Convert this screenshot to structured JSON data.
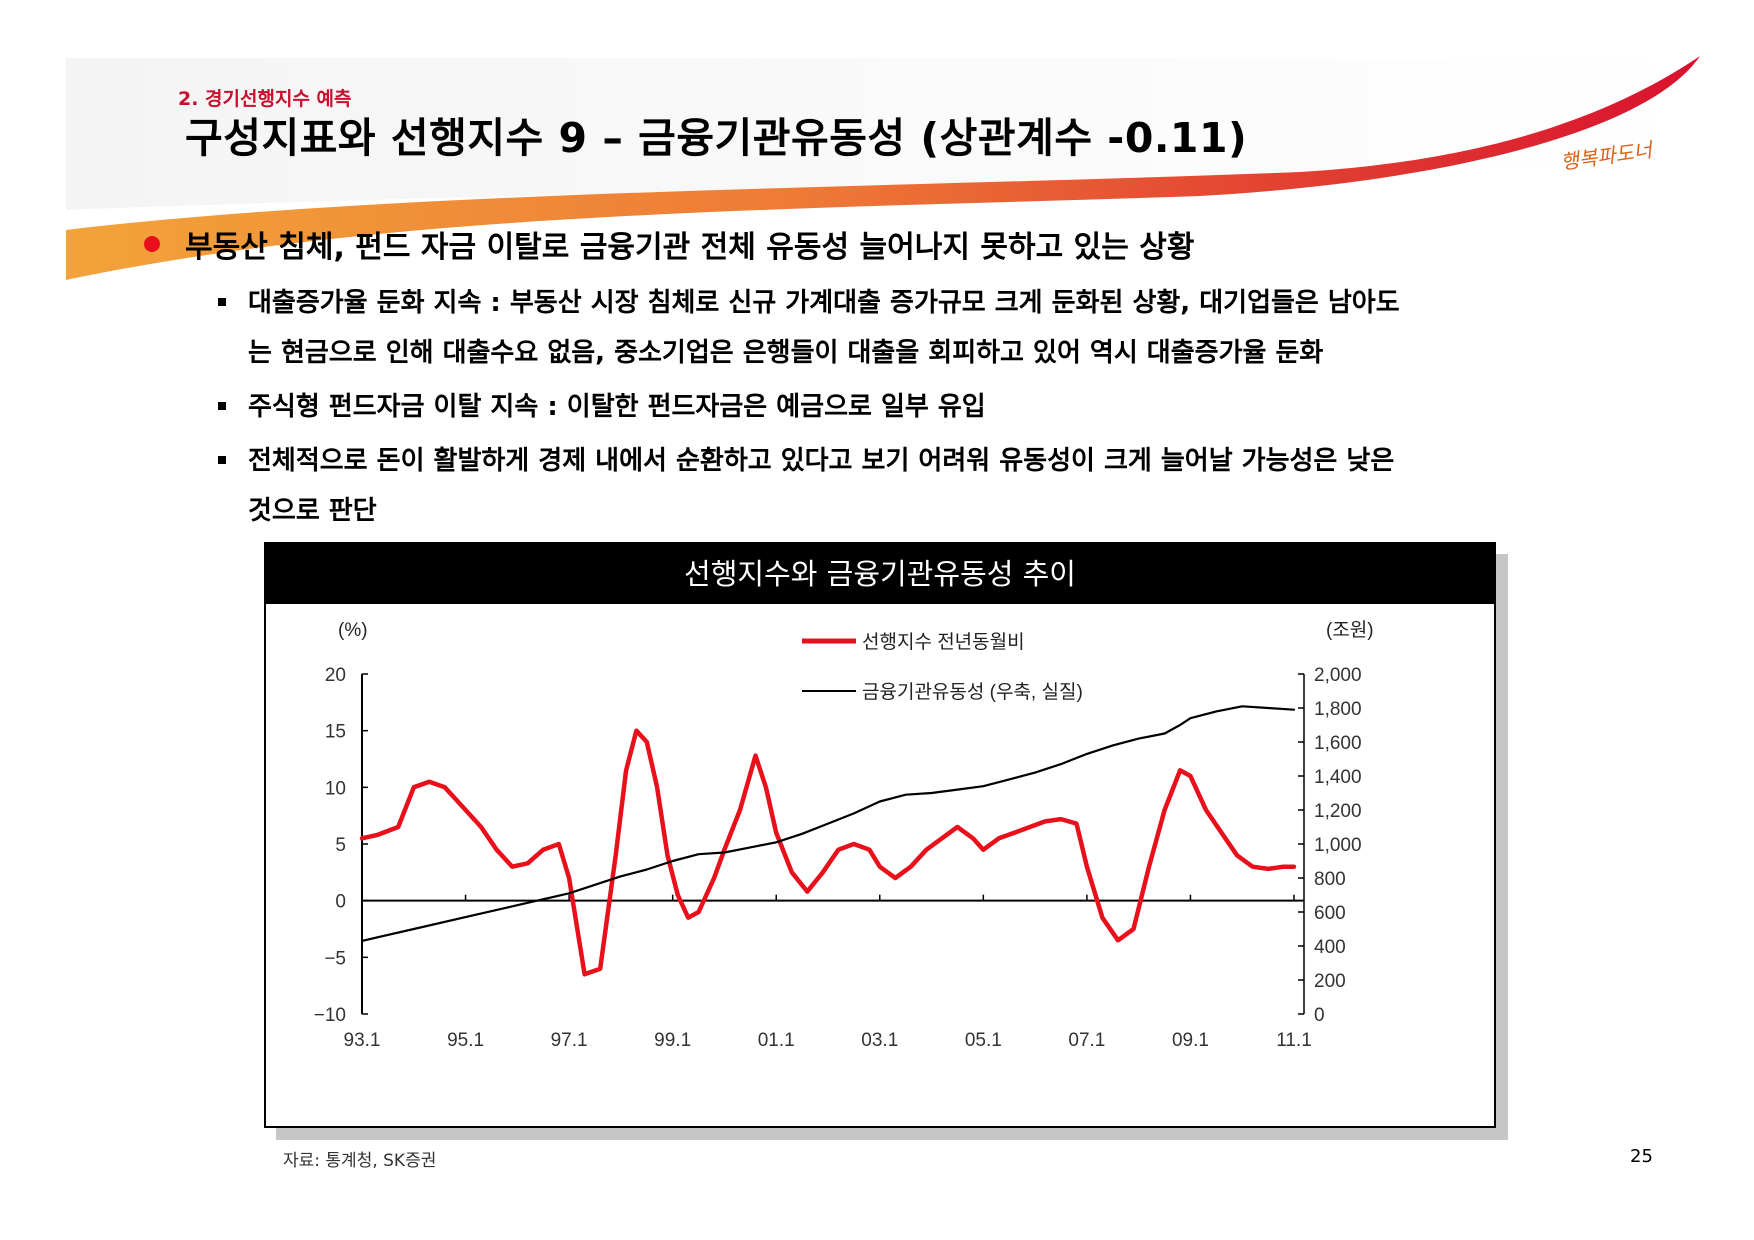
{
  "header": {
    "section": "2. 경기선행지수 예측",
    "title": "구성지표와 선행지수 9 – 금융기관유동성 (상관계수 -0.11)",
    "logo_text": "행복파도너"
  },
  "content": {
    "main_point": "부동산 침체, 펀드 자금 이탈로 금융기관 전체 유동성 늘어나지 못하고 있는 상황",
    "sub_points": [
      {
        "line1": "대출증가율 둔화 지속 : 부동산 시장 침체로 신규 가계대출 증가규모 크게 둔화된 상황, 대기업들은 남아도",
        "line2": "는 현금으로 인해 대출수요 없음, 중소기업은 은행들이 대출을 회피하고 있어 역시 대출증가율 둔화"
      },
      {
        "line1": "주식형 펀드자금 이탈 지속 : 이탈한 펀드자금은 예금으로 일부 유입"
      },
      {
        "line1": "전체적으로 돈이 활발하게 경제 내에서 순환하고 있다고 보기 어려워 유동성이 크게 늘어날 가능성은 낮은",
        "line2": "것으로 판단"
      }
    ]
  },
  "colors": {
    "accent_red": "#e8101a",
    "banner_orange": "#f2a33a",
    "line_black": "#000000"
  },
  "chart_data": {
    "type": "line",
    "title": "선행지수와 금융기관유동성 추이",
    "y_left_label": "(%)",
    "y_right_label": "(조원)",
    "x_tick_labels": [
      "93.1",
      "95.1",
      "97.1",
      "99.1",
      "01.1",
      "03.1",
      "05.1",
      "07.1",
      "09.1",
      "11.1"
    ],
    "y_left_ticks": [
      "20",
      "15",
      "10",
      "5",
      "0",
      "−5",
      "−10"
    ],
    "y_right_ticks": [
      "2,000",
      "1,800",
      "1,600",
      "1,400",
      "1,200",
      "1,000",
      "800",
      "600",
      "400",
      "200",
      "0"
    ],
    "y_left_range": [
      -10,
      20
    ],
    "y_right_range": [
      0,
      2000
    ],
    "x_range": [
      1993.0,
      2011.0
    ],
    "series": [
      {
        "name": "선행지수 전년동월비",
        "axis": "left",
        "color": "#e8101a",
        "x": [
          1993.0,
          1993.3,
          1993.7,
          1994.0,
          1994.3,
          1994.6,
          1995.0,
          1995.3,
          1995.6,
          1995.9,
          1996.2,
          1996.5,
          1996.8,
          1997.0,
          1997.3,
          1997.6,
          1997.9,
          1998.1,
          1998.3,
          1998.5,
          1998.7,
          1998.9,
          1999.1,
          1999.3,
          1999.5,
          1999.8,
          2000.0,
          2000.3,
          2000.6,
          2000.8,
          2001.0,
          2001.3,
          2001.6,
          2001.9,
          2002.2,
          2002.5,
          2002.8,
          2003.0,
          2003.3,
          2003.6,
          2003.9,
          2004.2,
          2004.5,
          2004.8,
          2005.0,
          2005.3,
          2005.6,
          2005.9,
          2006.2,
          2006.5,
          2006.8,
          2007.0,
          2007.3,
          2007.6,
          2007.9,
          2008.2,
          2008.5,
          2008.8,
          2009.0,
          2009.3,
          2009.6,
          2009.9,
          2010.2,
          2010.5,
          2010.8,
          2011.0
        ],
        "y": [
          5.5,
          5.8,
          6.5,
          10.0,
          10.5,
          10.0,
          8.0,
          6.5,
          4.5,
          3.0,
          3.3,
          4.5,
          5.0,
          2.0,
          -6.5,
          -6.0,
          4.0,
          11.5,
          15.0,
          14.0,
          10.0,
          4.0,
          0.5,
          -1.5,
          -1.0,
          2.0,
          4.5,
          8.0,
          12.8,
          10.0,
          6.0,
          2.5,
          0.8,
          2.5,
          4.5,
          5.0,
          4.5,
          3.0,
          2.0,
          3.0,
          4.5,
          5.5,
          6.5,
          5.5,
          4.5,
          5.5,
          6.0,
          6.5,
          7.0,
          7.2,
          6.8,
          3.0,
          -1.5,
          -3.5,
          -2.5,
          3.0,
          8.0,
          11.5,
          11.0,
          8.0,
          6.0,
          4.0,
          3.0,
          2.8,
          3.0,
          3.0
        ]
      },
      {
        "name": "금융기관유동성 (우축, 실질)",
        "axis": "right",
        "color": "#000000",
        "x": [
          1993.0,
          1994.0,
          1995.0,
          1996.0,
          1997.0,
          1997.8,
          1998.0,
          1998.5,
          1999.0,
          1999.5,
          2000.0,
          2000.5,
          2001.0,
          2001.5,
          2002.0,
          2002.5,
          2003.0,
          2003.5,
          2004.0,
          2004.5,
          2005.0,
          2005.5,
          2006.0,
          2006.5,
          2007.0,
          2007.5,
          2008.0,
          2008.5,
          2008.8,
          2009.0,
          2009.5,
          2010.0,
          2010.5,
          2011.0
        ],
        "y": [
          430,
          500,
          570,
          640,
          710,
          790,
          810,
          850,
          900,
          940,
          950,
          980,
          1010,
          1060,
          1120,
          1180,
          1250,
          1290,
          1300,
          1320,
          1340,
          1380,
          1420,
          1470,
          1530,
          1580,
          1620,
          1650,
          1700,
          1740,
          1780,
          1810,
          1800,
          1790
        ]
      }
    ]
  },
  "source": "자료: 통계청, SK증권",
  "page_number": "25"
}
